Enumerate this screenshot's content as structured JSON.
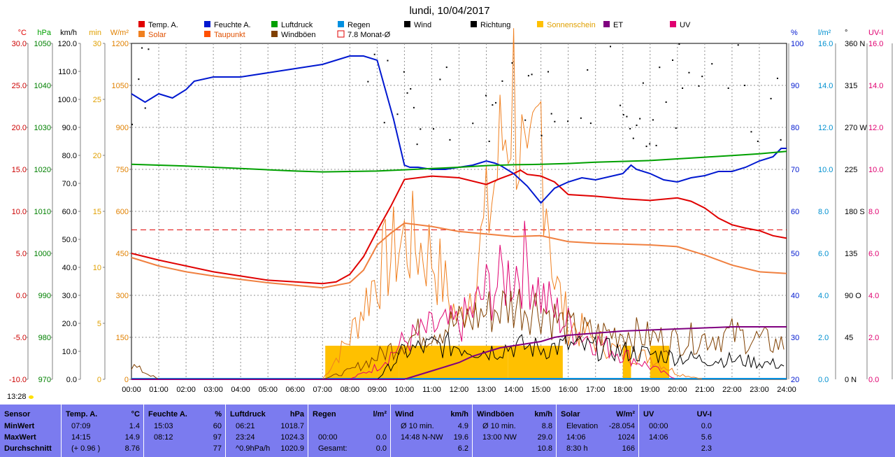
{
  "title": "lundi, 10/04/2017",
  "cursor_time": "13:28",
  "legend": [
    {
      "label": "Temp. A.",
      "color": "#e00000"
    },
    {
      "label": "Feuchte A.",
      "color": "#0018d0"
    },
    {
      "label": "Luftdruck",
      "color": "#00a000"
    },
    {
      "label": "Regen",
      "color": "#0090e0"
    },
    {
      "label": "Wind",
      "color": "#000000"
    },
    {
      "label": "Richtung",
      "color": "#000000"
    },
    {
      "label": "Sonnenschein",
      "color": "#ffc000"
    },
    {
      "label": "ET",
      "color": "#800080"
    },
    {
      "label": "UV",
      "color": "#e00070"
    },
    {
      "label": "Solar",
      "color": "#f08020"
    },
    {
      "label": "Taupunkt",
      "color": "#ff5000"
    },
    {
      "label": "Windböen",
      "color": "#804000"
    },
    {
      "label": "7.8 Monat-Ø",
      "color": "#e00000"
    }
  ],
  "axes": {
    "temp": {
      "unit": "°C",
      "color": "#e00000",
      "ticks": [
        "30.0",
        "25.0",
        "20.0",
        "15.0",
        "10.0",
        "5.0",
        "0.0",
        "-5.0",
        "-10.0"
      ]
    },
    "press": {
      "unit": "hPa",
      "color": "#00a000",
      "ticks": [
        "1050",
        "1040",
        "1030",
        "1020",
        "1010",
        "1000",
        "990",
        "980",
        "970"
      ]
    },
    "speed": {
      "unit": "km/h",
      "color": "#000000",
      "ticks": [
        "120.0",
        "110.0",
        "100.0",
        "90.0",
        "80.0",
        "70.0",
        "60.0",
        "50.0",
        "40.0",
        "30.0",
        "20.0",
        "10.0",
        "0.0"
      ]
    },
    "sunmin": {
      "unit": "min",
      "color": "#e0a000",
      "ticks": [
        "30",
        "25",
        "20",
        "15",
        "10",
        "5",
        "0"
      ]
    },
    "solar": {
      "unit": "W/m²",
      "color": "#e08000",
      "ticks": [
        "1200",
        "1050",
        "900",
        "750",
        "600",
        "450",
        "300",
        "150",
        "0"
      ]
    },
    "hum": {
      "unit": "%",
      "color": "#0018d0",
      "ticks": [
        "100",
        "90",
        "80",
        "70",
        "60",
        "50",
        "40",
        "30",
        "20"
      ]
    },
    "rain": {
      "unit": "l/m²",
      "color": "#0090d0",
      "ticks": [
        "16.0",
        "14.0",
        "12.0",
        "10.0",
        "8.0",
        "6.0",
        "4.0",
        "2.0",
        "0.0"
      ]
    },
    "dir": {
      "unit": "°",
      "color": "#000000",
      "ticks": [
        "360 N",
        "315",
        "270 W",
        "225",
        "180 S",
        "135",
        "90  O",
        "45",
        "0   N"
      ]
    },
    "uv": {
      "unit": "UV-I",
      "color": "#e00070",
      "ticks": [
        "16.0",
        "14.0",
        "12.0",
        "10.0",
        "8.0",
        "6.0",
        "4.0",
        "2.0",
        "0.0"
      ]
    }
  },
  "chart_data": {
    "type": "line",
    "x_labels": [
      "00:00",
      "01:00",
      "02:00",
      "03:00",
      "04:00",
      "05:00",
      "06:00",
      "07:00",
      "08:00",
      "09:00",
      "10:00",
      "11:00",
      "12:00",
      "13:00",
      "14:00",
      "15:00",
      "16:00",
      "17:00",
      "18:00",
      "19:00",
      "20:00",
      "21:00",
      "22:00",
      "23:00",
      "24:00"
    ],
    "series": [
      {
        "name": "Temp. A.",
        "axis": "temp",
        "color": "#e00000",
        "x": [
          0,
          1,
          2,
          3,
          4,
          5,
          6,
          7,
          7.5,
          8,
          8.5,
          9,
          9.5,
          10,
          11,
          12,
          13,
          13.5,
          14,
          14.25,
          14.5,
          15,
          15.5,
          16,
          17,
          18,
          19,
          20,
          20.5,
          21,
          21.5,
          22,
          22.5,
          23,
          23.5,
          24
        ],
        "y": [
          5,
          4.2,
          3.5,
          2.8,
          2.3,
          1.8,
          1.6,
          1.4,
          1.6,
          2.5,
          4.6,
          7.7,
          10.6,
          13.8,
          14.2,
          14.0,
          13.2,
          13.9,
          14.5,
          14.9,
          14.4,
          14.2,
          13.5,
          12.0,
          11.8,
          11.5,
          11.3,
          11.6,
          11.2,
          10.4,
          9.2,
          8.4,
          8.0,
          7.7,
          7.1,
          6.8
        ]
      },
      {
        "name": "Taupunkt",
        "axis": "temp",
        "color": "#f08040",
        "x": [
          0,
          1,
          2,
          3,
          4,
          5,
          6,
          7,
          8,
          8.5,
          9,
          9.5,
          10,
          11,
          12,
          13,
          14,
          15,
          16,
          17,
          18,
          19,
          20,
          21,
          22,
          23,
          24
        ],
        "y": [
          4.5,
          3.5,
          2.8,
          2.3,
          1.9,
          1.5,
          1.2,
          0.9,
          1.5,
          3,
          6,
          7.4,
          8.6,
          8.2,
          7.6,
          7.3,
          7.0,
          7.1,
          6.4,
          6.2,
          6.1,
          6.0,
          5.8,
          4.8,
          3.6,
          2.8,
          2.6
        ]
      },
      {
        "name": "Feuchte A.",
        "axis": "hum",
        "color": "#0018d0",
        "x": [
          0,
          0.5,
          1,
          1.5,
          2,
          2.3,
          3,
          4,
          5,
          5.5,
          6,
          7,
          7.5,
          8,
          8.5,
          9,
          9.3,
          9.6,
          10,
          10.2,
          10.5,
          11,
          11.5,
          12,
          12.5,
          13,
          13.3,
          13.5,
          14,
          14.5,
          15,
          15.5,
          16,
          16.5,
          17,
          18,
          18.3,
          18.5,
          19,
          19.5,
          20,
          20.5,
          21,
          21.5,
          22,
          22.5,
          23,
          23.5,
          23.8,
          24
        ],
        "y": [
          88,
          86,
          88,
          87,
          89,
          91,
          92,
          92,
          93,
          93.5,
          94,
          95,
          96,
          97,
          97,
          96,
          89,
          82,
          71,
          70.5,
          70.5,
          70,
          70,
          70.5,
          71,
          72,
          71.5,
          71,
          69,
          66,
          62,
          65.5,
          67,
          68,
          67.5,
          69,
          71,
          70,
          69,
          67.5,
          67,
          68,
          68.5,
          69.5,
          69.5,
          70.5,
          72,
          73,
          75,
          75
        ]
      },
      {
        "name": "Luftdruck",
        "axis": "press",
        "color": "#00a000",
        "x": [
          0,
          1,
          2,
          3,
          4,
          5,
          6,
          7,
          8,
          9,
          10,
          11,
          12,
          13,
          14,
          15,
          16,
          17,
          18,
          19,
          20,
          21,
          22,
          23,
          24
        ],
        "y": [
          1021.2,
          1021.0,
          1020.8,
          1020.5,
          1020.2,
          1019.9,
          1019.6,
          1019.4,
          1019.5,
          1019.6,
          1019.9,
          1020.2,
          1020.5,
          1020.9,
          1021.1,
          1021.2,
          1021.4,
          1021.7,
          1021.9,
          1022.1,
          1022.5,
          1022.9,
          1023.3,
          1023.7,
          1024.3
        ]
      },
      {
        "name": "ET",
        "axis": "uv",
        "color": "#800080",
        "x": [
          0,
          7,
          10,
          10.5,
          11,
          11.5,
          12,
          12.5,
          13,
          13.5,
          14,
          14.5,
          15,
          15.5,
          16,
          17,
          18,
          19,
          20,
          21,
          22,
          23,
          24
        ],
        "y": [
          0,
          0,
          0,
          0.2,
          0.4,
          0.6,
          0.8,
          1.1,
          1.3,
          1.5,
          1.6,
          1.7,
          1.8,
          2.0,
          2.1,
          2.2,
          2.3,
          2.35,
          2.4,
          2.45,
          2.5,
          2.5,
          2.5
        ]
      }
    ],
    "noisy_series": [
      {
        "name": "Solar",
        "axis": "solar",
        "color": "#f08020",
        "x": [
          7,
          8,
          9,
          10,
          11,
          12,
          12.5,
          13,
          13.5,
          14,
          14.5,
          15,
          15.5,
          16,
          17,
          18,
          19,
          20,
          21
        ],
        "y": [
          0,
          150,
          380,
          500,
          450,
          200,
          350,
          560,
          800,
          1050,
          600,
          950,
          350,
          200,
          140,
          90,
          80,
          20,
          0
        ]
      },
      {
        "name": "UV",
        "axis": "uv",
        "color": "#e00070",
        "x": [
          8,
          9,
          10,
          11,
          12,
          12.5,
          13,
          13.5,
          14,
          14.5,
          15,
          15.5,
          16,
          17,
          18,
          19,
          20
        ],
        "y": [
          0,
          0.6,
          1.8,
          2.4,
          2.6,
          3.2,
          4.2,
          4.6,
          5.2,
          5.6,
          4.0,
          3.2,
          2.6,
          1.8,
          1.2,
          0.6,
          0
        ]
      },
      {
        "name": "Windböen",
        "axis": "speed",
        "color": "#804000",
        "x": [
          0,
          1,
          2,
          3,
          4,
          5,
          6,
          7,
          8,
          9,
          10,
          11,
          12,
          13,
          14,
          15,
          16,
          17,
          18,
          19,
          20,
          21,
          22,
          23,
          24
        ],
        "y": [
          5,
          0,
          0,
          0,
          0,
          0,
          0,
          0,
          3,
          8,
          14,
          18,
          20,
          24,
          27,
          26,
          18,
          16,
          17,
          15,
          14,
          15,
          16,
          14,
          12
        ]
      },
      {
        "name": "Wind",
        "axis": "speed",
        "color": "#000000",
        "x": [
          9,
          10,
          11,
          12,
          13,
          14,
          15,
          16,
          17,
          18,
          19,
          20,
          21,
          22,
          23,
          24
        ],
        "y": [
          0,
          10,
          12,
          12,
          10,
          12,
          11,
          12,
          11,
          10,
          9,
          8,
          7,
          7,
          6,
          5
        ]
      }
    ],
    "sunshine_hours": [
      [
        7.1,
        9.8
      ],
      [
        9.8,
        13.8
      ],
      [
        13.8,
        15.8
      ],
      [
        18.0,
        18.3
      ],
      [
        19.0,
        19.7
      ]
    ],
    "monthly_avg_temp": 7.8,
    "ylim": {
      "temp": [
        -10,
        30
      ],
      "hum": [
        20,
        100
      ],
      "press": [
        970,
        1050
      ],
      "solar": [
        0,
        1200
      ],
      "uv": [
        0,
        16
      ],
      "speed": [
        0,
        120
      ],
      "dir": [
        0,
        360
      ]
    }
  },
  "table": {
    "columns": [
      {
        "name": "Sensor",
        "unit": "",
        "rows": [
          [
            "MinWert",
            ""
          ],
          [
            "MaxWert",
            ""
          ],
          [
            "Durchschnitt",
            ""
          ]
        ]
      },
      {
        "name": "Temp. A.",
        "unit": "°C",
        "rows": [
          [
            "07:09",
            "1.4"
          ],
          [
            "14:15",
            "14.9"
          ],
          [
            "(+ 0.96 )",
            "8.76"
          ]
        ]
      },
      {
        "name": "Feuchte A.",
        "unit": "%",
        "rows": [
          [
            "15:03",
            "60"
          ],
          [
            "08:12",
            "97"
          ],
          [
            "",
            "77"
          ]
        ]
      },
      {
        "name": "Luftdruck",
        "unit": "hPa",
        "rows": [
          [
            "06:21",
            "1018.7"
          ],
          [
            "23:24",
            "1024.3"
          ],
          [
            "^0.9hPa/h",
            "1020.9"
          ]
        ]
      },
      {
        "name": "Regen",
        "unit": "l/m²",
        "rows": [
          [
            "",
            ""
          ],
          [
            "00:00",
            "0.0"
          ],
          [
            "Gesamt:",
            "0.0"
          ]
        ]
      },
      {
        "name": "Wind",
        "unit": "km/h",
        "rows": [
          [
            "Ø 10 min.",
            "4.9"
          ],
          [
            "14:48    N-NW",
            "19.6"
          ],
          [
            "",
            "6.2"
          ]
        ]
      },
      {
        "name": "Windböen",
        "unit": "km/h",
        "rows": [
          [
            "Ø 10 min.",
            "8.8"
          ],
          [
            "13:00     NW",
            "29.0"
          ],
          [
            "",
            "10.8"
          ]
        ]
      },
      {
        "name": "Solar",
        "unit": "W/m²",
        "rows": [
          [
            "Elevation",
            "-28.054"
          ],
          [
            "14:06",
            "1024"
          ],
          [
            "8:30 h",
            "166"
          ]
        ]
      },
      {
        "name": "UV",
        "unit": "UV-I",
        "rows": [
          [
            "00:00",
            "0.0"
          ],
          [
            "14:06",
            "5.6"
          ],
          [
            "",
            "2.3"
          ]
        ]
      }
    ]
  }
}
